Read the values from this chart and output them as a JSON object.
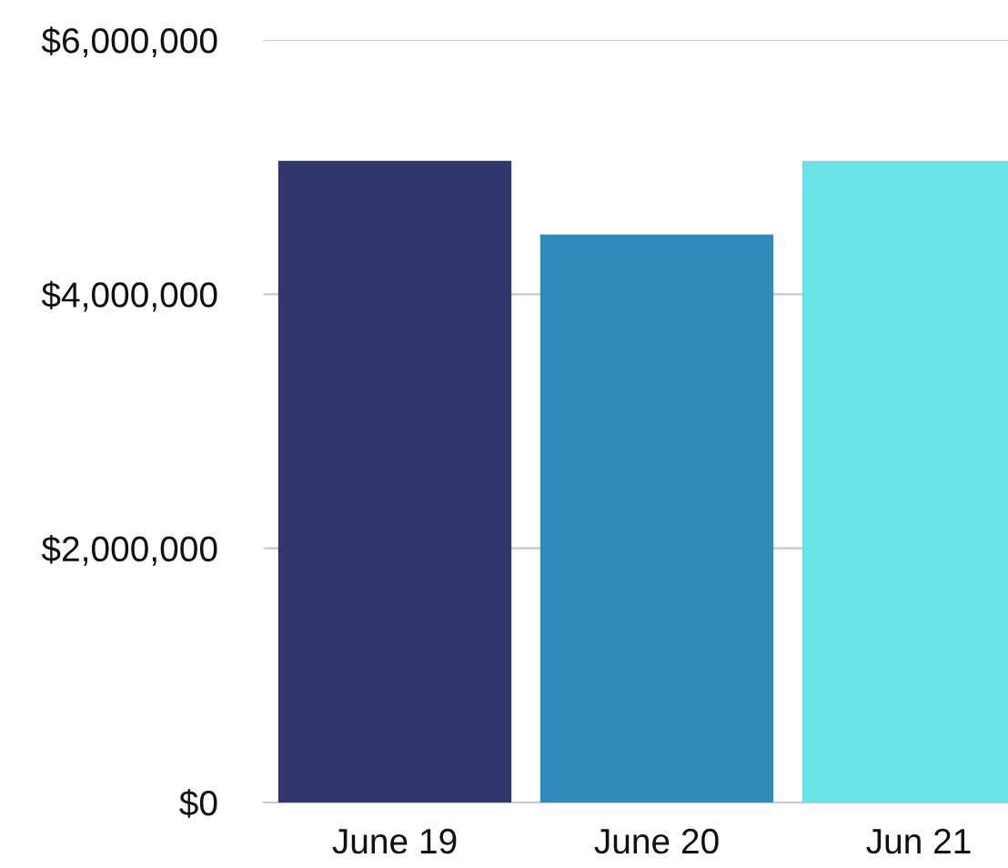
{
  "chart_data": {
    "type": "bar",
    "categories": [
      "June 19",
      "June 20",
      "Jun 21"
    ],
    "values": [
      5050000,
      4470000,
      5050000
    ],
    "colors": [
      "#31356e",
      "#2e8bba",
      "#6ae3e6"
    ],
    "ylim": [
      0,
      6000000
    ],
    "yticks": [
      {
        "value": 0,
        "label": "$0"
      },
      {
        "value": 2000000,
        "label": "$2,000,000"
      },
      {
        "value": 4000000,
        "label": "$4,000,000"
      },
      {
        "value": 6000000,
        "label": "$6,000,000"
      }
    ],
    "grid": "y"
  }
}
